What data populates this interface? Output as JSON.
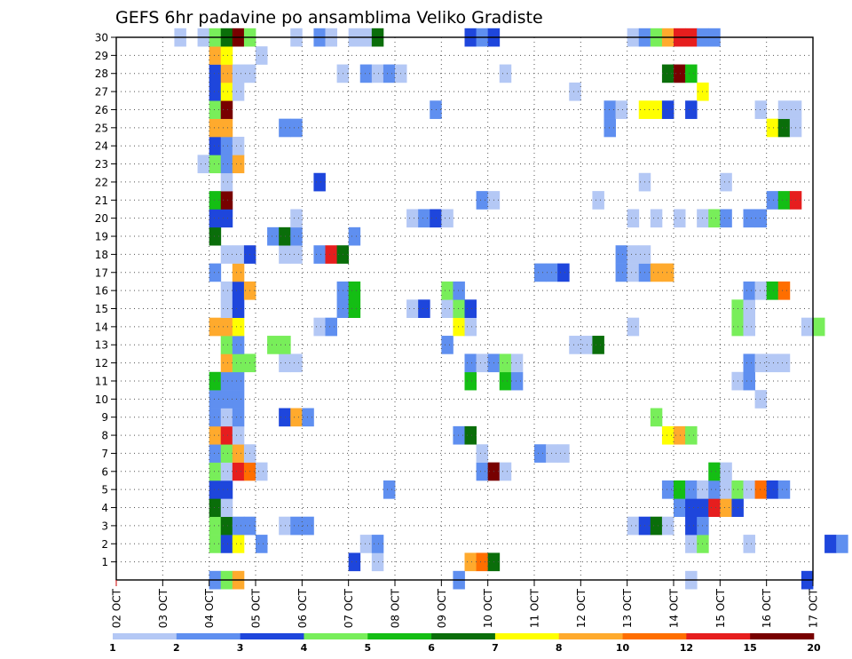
{
  "chart_data": {
    "type": "heatmap",
    "title": "GEFS 6hr padavine po ansamblima Veliko Gradiste",
    "x_ticks": [
      "02 OCT",
      "03 OCT",
      "04 OCT",
      "05 OCT",
      "06 OCT",
      "07 OCT",
      "08 OCT",
      "09 OCT",
      "10 OCT",
      "11 OCT",
      "12 OCT",
      "13 OCT",
      "14 OCT",
      "15 OCT",
      "16 OCT",
      "17 OCT"
    ],
    "y_ticks": [
      1,
      2,
      3,
      4,
      5,
      6,
      7,
      8,
      9,
      10,
      11,
      12,
      13,
      14,
      15,
      16,
      17,
      18,
      19,
      20,
      21,
      22,
      23,
      24,
      25,
      26,
      27,
      28,
      29,
      30
    ],
    "x_range": [
      "02 OCT 00Z",
      "17 OCT 00Z"
    ],
    "y_range": [
      0,
      30
    ],
    "time_step_hours": 6,
    "grid": true,
    "colorbar": {
      "labels": [
        "1",
        "2",
        "3",
        "4",
        "5",
        "6",
        "7",
        "8",
        "10",
        "12",
        "15",
        "20"
      ],
      "colors": [
        "#b4c8f5",
        "#5f8ff0",
        "#1e46dc",
        "#78ee5a",
        "#14be14",
        "#0a6e0a",
        "#ffff00",
        "#ffaa2d",
        "#ff6e00",
        "#e61e1e",
        "#780000"
      ]
    },
    "bins": [
      {
        "from": 1,
        "to": 2,
        "color": "#b4c8f5"
      },
      {
        "from": 2,
        "to": 3,
        "color": "#5f8ff0"
      },
      {
        "from": 3,
        "to": 4,
        "color": "#1e46dc"
      },
      {
        "from": 4,
        "to": 5,
        "color": "#78ee5a"
      },
      {
        "from": 5,
        "to": 6,
        "color": "#14be14"
      },
      {
        "from": 6,
        "to": 7,
        "color": "#0a6e0a"
      },
      {
        "from": 7,
        "to": 8,
        "color": "#ffff00"
      },
      {
        "from": 8,
        "to": 10,
        "color": "#ffaa2d"
      },
      {
        "from": 10,
        "to": 12,
        "color": "#ff6e00"
      },
      {
        "from": 12,
        "to": 15,
        "color": "#e61e1e"
      },
      {
        "from": 15,
        "to": 20,
        "color": "#780000"
      }
    ],
    "member_series": {
      "1": {
        "20": 3.5,
        "22": 1.5,
        "30": 8.5,
        "31": 10.5,
        "32": 6.5
      },
      "2": {
        "8": 4.5,
        "9": 3.5,
        "10": 7.5,
        "12": 2.5,
        "21": 1.5,
        "22": 2.5,
        "49": 1.5,
        "50": 4.5,
        "54": 1.5,
        "61": 3.5,
        "62": 2.5
      },
      "3": {
        "8": 4.5,
        "9": 6.5,
        "10": 2.5,
        "11": 2.5,
        "14": 1.5,
        "15": 2.5,
        "16": 2.5,
        "44": 1.5,
        "45": 3.5,
        "46": 6.5,
        "47": 1.5,
        "49": 3.5,
        "50": 2.5
      },
      "4": {
        "8": 6.5,
        "9": 1.5,
        "48": 2.5,
        "49": 3.5,
        "50": 3.5,
        "51": 12.5,
        "52": 8.5,
        "53": 3.5
      },
      "5": {
        "8": 3.5,
        "9": 3.5,
        "23": 2.5,
        "47": 2.5,
        "48": 5.5,
        "49": 2.5,
        "50": 1.5,
        "51": 2.5,
        "52": 1.5,
        "53": 4.5,
        "54": 1.5,
        "55": 10.5,
        "56": 3.5,
        "57": 2.5
      },
      "6": {
        "8": 4.5,
        "9": 1.5,
        "10": 12.5,
        "11": 10.5,
        "12": 1.5,
        "31": 2.5,
        "32": 17.5,
        "33": 1.5,
        "51": 5.5,
        "52": 1.5
      },
      "7": {
        "8": 2.5,
        "9": 4.5,
        "10": 8.5,
        "11": 1.5,
        "31": 1.5,
        "36": 2.5,
        "37": 1.5,
        "38": 1.5
      },
      "8": {
        "8": 8.5,
        "9": 12.5,
        "10": 1.5,
        "29": 2.5,
        "30": 6.5,
        "47": 7.5,
        "48": 8.5,
        "49": 4.5
      },
      "9": {
        "8": 2.5,
        "9": 1.5,
        "10": 2.5,
        "14": 3.5,
        "15": 8.5,
        "16": 2.5,
        "46": 4.5
      },
      "10": {
        "8": 2.5,
        "9": 2.5,
        "10": 2.5,
        "55": 1.5
      },
      "11": {
        "8": 5.5,
        "9": 2.5,
        "10": 2.5,
        "30": 5.5,
        "33": 5.5,
        "34": 2.5,
        "53": 1.5,
        "54": 2.5
      },
      "12": {
        "9": 8.5,
        "10": 4.5,
        "11": 4.5,
        "14": 1.5,
        "15": 1.5,
        "30": 2.5,
        "31": 1.5,
        "32": 2.5,
        "33": 4.5,
        "34": 1.5,
        "54": 2.5,
        "55": 1.5,
        "56": 1.5,
        "57": 1.5
      },
      "13": {
        "9": 4.5,
        "10": 2.5,
        "13": 4.5,
        "14": 4.5,
        "28": 2.5,
        "39": 1.5,
        "40": 1.5,
        "41": 6.5
      },
      "14": {
        "8": 8.5,
        "9": 8.5,
        "10": 7.5,
        "17": 1.5,
        "18": 2.5,
        "29": 7.5,
        "30": 1.5,
        "44": 1.5,
        "53": 4.5,
        "54": 1.5,
        "59": 1.5,
        "60": 4.5
      },
      "15": {
        "9": 1.5,
        "10": 3.5,
        "19": 2.5,
        "20": 5.5,
        "25": 1.5,
        "26": 3.5,
        "28": 1.5,
        "29": 4.5,
        "30": 3.5,
        "53": 4.5,
        "54": 1.5
      },
      "16": {
        "9": 1.5,
        "10": 3.5,
        "11": 8.5,
        "19": 2.5,
        "20": 5.5,
        "28": 4.5,
        "29": 2.5,
        "54": 2.5,
        "55": 1.5,
        "56": 5.5,
        "57": 10.5
      },
      "17": {
        "8": 2.5,
        "10": 8.5,
        "36": 2.5,
        "37": 2.5,
        "38": 3.5,
        "43": 2.5,
        "44": 1.5,
        "45": 2.5,
        "46": 8.5,
        "47": 8.5
      },
      "18": {
        "9": 1.5,
        "10": 1.5,
        "11": 3.5,
        "14": 1.5,
        "15": 1.5,
        "17": 2.5,
        "18": 12.5,
        "19": 6.5,
        "43": 2.5,
        "44": 1.5,
        "45": 1.5
      },
      "19": {
        "8": 6.5,
        "13": 2.5,
        "14": 6.5,
        "15": 2.5,
        "20": 2.5
      },
      "20": {
        "8": 3.5,
        "9": 3.5,
        "15": 1.5,
        "25": 1.5,
        "26": 2.5,
        "27": 3.5,
        "28": 1.5,
        "44": 1.5,
        "46": 1.5,
        "48": 1.5,
        "50": 1.5,
        "51": 4.5,
        "52": 2.5,
        "54": 2.5,
        "55": 2.5
      },
      "21": {
        "8": 5.5,
        "9": 17.5,
        "31": 2.5,
        "32": 1.5,
        "41": 1.5,
        "56": 2.5,
        "57": 5.5,
        "58": 12.5
      },
      "22": {
        "9": 1.5,
        "17": 3.5,
        "45": 1.5,
        "52": 1.5
      },
      "23": {
        "7": 1.5,
        "8": 4.5,
        "9": 2.5,
        "10": 8.5
      },
      "24": {
        "8": 3.5,
        "9": 2.5,
        "10": 1.5
      },
      "25": {
        "8": 8.5,
        "9": 8.5,
        "14": 2.5,
        "15": 2.5,
        "42": 2.5,
        "56": 7.5,
        "57": 6.5,
        "58": 1.5
      },
      "26": {
        "8": 4.5,
        "9": 17.5,
        "27": 2.5,
        "42": 2.5,
        "43": 1.5,
        "45": 7.5,
        "46": 7.5,
        "47": 3.5,
        "49": 3.5,
        "55": 1.5,
        "57": 1.5,
        "58": 1.5
      },
      "27": {
        "8": 3.5,
        "9": 7.5,
        "10": 1.5,
        "39": 1.5,
        "50": 7.5
      },
      "28": {
        "8": 3.5,
        "9": 8.5,
        "10": 1.5,
        "11": 1.5,
        "19": 1.5,
        "21": 2.5,
        "22": 1.5,
        "23": 2.5,
        "24": 1.5,
        "33": 1.5,
        "47": 6.5,
        "48": 15.5,
        "49": 5.5
      },
      "29": {
        "8": 8.5,
        "9": 7.5,
        "12": 1.5
      },
      "30": {
        "5": 1.5,
        "7": 1.5,
        "8": 4.5,
        "9": 6.5,
        "10": 15.5,
        "11": 4.5,
        "15": 1.5,
        "17": 2.5,
        "18": 1.5,
        "20": 1.5,
        "21": 1.5,
        "22": 6.5,
        "30": 3.5,
        "31": 2.5,
        "32": 3.5,
        "44": 1.5,
        "45": 2.5,
        "46": 4.5,
        "47": 8.5,
        "48": 12.5,
        "49": 12.5,
        "50": 2.5,
        "51": 2.5
      },
      "0": {
        "8": 2.5,
        "9": 4.5,
        "10": 8.5,
        "29": 2.5,
        "49": 1.5,
        "59": 3.5
      }
    }
  }
}
